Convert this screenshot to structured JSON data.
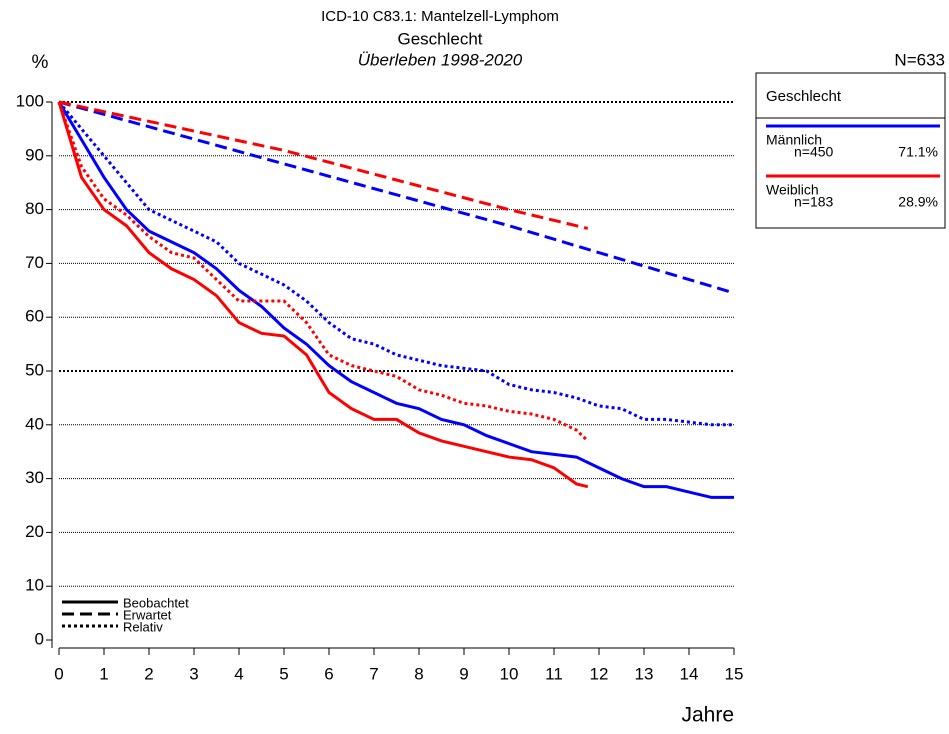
{
  "chart_data": {
    "type": "line",
    "title": "ICD-10 C83.1: Mantelzell-Lymphom",
    "subtitle": "Geschlecht",
    "subtitle2": "Überleben 1998-2020",
    "n_label": "N=633",
    "y_label": "%",
    "x_label": "Jahre",
    "xlim": [
      0,
      15
    ],
    "ylim": [
      0,
      100
    ],
    "xticks": [
      0,
      1,
      2,
      3,
      4,
      5,
      6,
      7,
      8,
      9,
      10,
      11,
      12,
      13,
      14,
      15
    ],
    "yticks": [
      0,
      10,
      20,
      30,
      40,
      50,
      60,
      70,
      80,
      90,
      100
    ],
    "grid": true,
    "major_grid": [
      50,
      100
    ],
    "legend_title": "Geschlecht",
    "line_styles": [
      {
        "label": "Beobachtet",
        "dash": "solid"
      },
      {
        "label": "Erwartet",
        "dash": "dashed"
      },
      {
        "label": "Relativ",
        "dash": "dotted"
      }
    ],
    "groups": [
      {
        "name": "Männlich",
        "color": "#0000ff",
        "n": "n=450",
        "share": "71.1%",
        "curves": [
          {
            "style": 0,
            "x": [
              0,
              0.5,
              1,
              1.5,
              2,
              2.5,
              3,
              3.5,
              4,
              4.5,
              5,
              5.5,
              6,
              6.5,
              7,
              7.5,
              8,
              8.5,
              9,
              9.5,
              10,
              10.5,
              11,
              11.5,
              12,
              12.5,
              13,
              13.5,
              14,
              14.5,
              15
            ],
            "values": [
              100,
              93,
              86,
              80,
              76,
              74,
              72,
              69,
              65,
              62,
              58,
              55,
              51,
              48,
              46,
              44,
              43,
              41,
              40,
              38,
              36.5,
              35,
              34.5,
              34,
              32,
              30,
              28.5,
              28.5,
              27.5,
              26.5,
              26.5
            ]
          },
          {
            "style": 1,
            "x": [
              0,
              5,
              10,
              15
            ],
            "values": [
              100,
              88.5,
              77,
              64.5
            ]
          },
          {
            "style": 2,
            "x": [
              0,
              0.5,
              1,
              1.5,
              2,
              2.5,
              3,
              3.5,
              4,
              4.5,
              5,
              5.5,
              6,
              6.5,
              7,
              7.5,
              8,
              8.5,
              9,
              9.5,
              10,
              10.5,
              11,
              11.5,
              12,
              12.5,
              13,
              13.5,
              14,
              14.5,
              15
            ],
            "values": [
              100,
              95,
              90,
              85,
              80,
              78,
              76,
              74,
              70,
              68,
              66,
              63,
              59,
              56,
              55,
              53,
              52,
              51,
              50.5,
              50,
              47.5,
              46.5,
              46,
              45,
              43.5,
              43,
              41,
              41,
              40.5,
              40,
              40
            ]
          }
        ]
      },
      {
        "name": "Weiblich",
        "color": "#ff0000",
        "n": "n=183",
        "share": "28.9%",
        "curves": [
          {
            "style": 0,
            "x": [
              0,
              0.5,
              1,
              1.5,
              2,
              2.5,
              3,
              3.5,
              4,
              4.5,
              5,
              5.5,
              6,
              6.5,
              7,
              7.5,
              8,
              8.5,
              9,
              9.5,
              10,
              10.5,
              11,
              11.5,
              11.75
            ],
            "values": [
              100,
              86,
              80,
              77,
              72,
              69,
              67,
              64,
              59,
              57,
              56.5,
              53,
              46,
              43,
              41,
              41,
              38.5,
              37,
              36,
              35,
              34,
              33.5,
              32,
              29,
              28.5
            ]
          },
          {
            "style": 1,
            "x": [
              0,
              5,
              10,
              11.75
            ],
            "values": [
              100,
              91,
              80,
              76.5
            ]
          },
          {
            "style": 2,
            "x": [
              0,
              0.5,
              1,
              1.5,
              2,
              2.5,
              3,
              3.5,
              4,
              4.5,
              5,
              5.5,
              6,
              6.5,
              7,
              7.5,
              8,
              8.5,
              9,
              9.5,
              10,
              10.5,
              11,
              11.5,
              11.75
            ],
            "values": [
              100,
              88,
              82,
              79,
              75,
              72,
              71,
              67,
              63,
              63,
              63,
              59,
              53,
              51,
              50,
              49,
              46.5,
              45.5,
              44,
              43.5,
              42.5,
              42,
              41,
              39,
              37
            ]
          }
        ]
      }
    ]
  }
}
